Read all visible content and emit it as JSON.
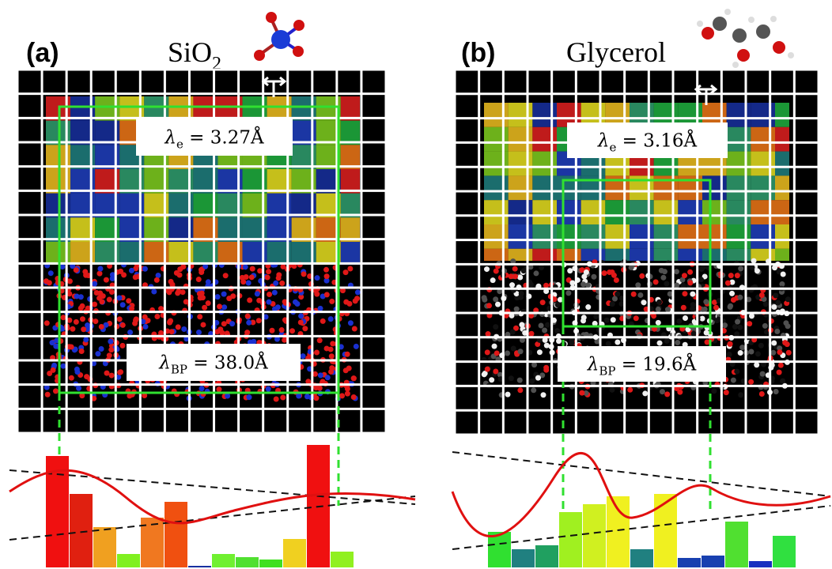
{
  "panels": [
    {
      "label": "(a)",
      "title": "SiO",
      "title_sub": "2",
      "lambda_e": {
        "symbol": "λ",
        "sub": "e",
        "text": " = 3.27Å"
      },
      "lambda_bp": {
        "symbol": "λ",
        "sub": "BP",
        "text": " = 38.0Å"
      }
    },
    {
      "label": "(b)",
      "title": "Glycerol",
      "lambda_e": {
        "symbol": "λ",
        "sub": "e",
        "text": " = 3.16Å"
      },
      "lambda_bp": {
        "symbol": "λ",
        "sub": "BP",
        "text": " = 19.6Å"
      }
    }
  ]
}
